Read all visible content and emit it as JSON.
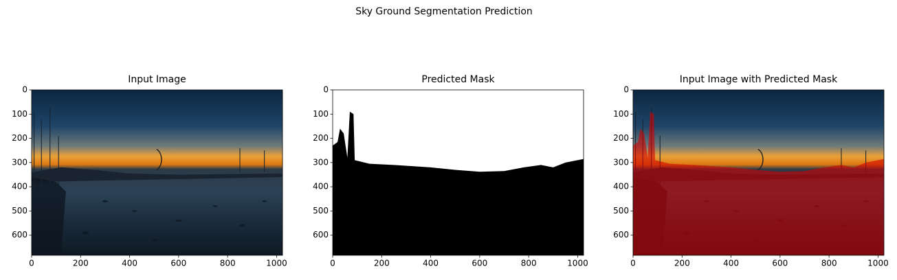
{
  "title": "Sky Ground Segmentation Prediction",
  "chart_data": [
    {
      "type": "image",
      "title": "Input Image",
      "xlim": [
        0,
        1024
      ],
      "ylim": [
        683,
        0
      ],
      "xticks": [
        0,
        200,
        400,
        600,
        800,
        1000
      ],
      "yticks": [
        0,
        100,
        200,
        300,
        400,
        500,
        600
      ]
    },
    {
      "type": "image",
      "title": "Predicted Mask",
      "xlim": [
        0,
        1024
      ],
      "ylim": [
        683,
        0
      ],
      "xticks": [
        0,
        200,
        400,
        600,
        800,
        1000
      ],
      "yticks": [
        0,
        100,
        200,
        300,
        400,
        500,
        600
      ]
    },
    {
      "type": "image",
      "title": "Input Image with Predicted Mask",
      "xlim": [
        0,
        1024
      ],
      "ylim": [
        683,
        0
      ],
      "xticks": [
        0,
        200,
        400,
        600,
        800,
        1000
      ],
      "yticks": [
        0,
        100,
        200,
        300,
        400,
        500,
        600
      ]
    }
  ]
}
